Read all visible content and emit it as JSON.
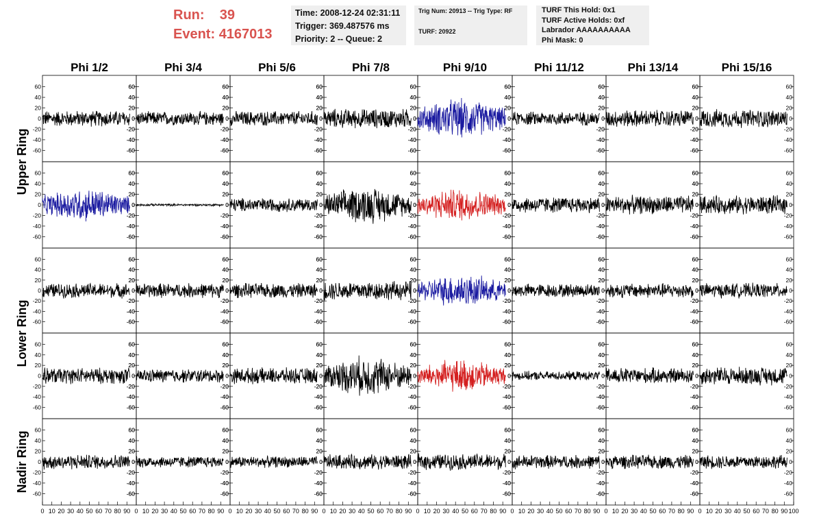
{
  "header": {
    "run_label": "Run:",
    "run_value": "39",
    "event_label": "Event:",
    "event_value": "4167013",
    "time_text": "Time: 2008-12-24 02:31:11",
    "trigger_text": "Trigger: 369.487576 ms",
    "priority_text": "Priority: 2 -- Queue: 2",
    "trig_num_text": "Trig Num: 20913 -- Trig Type: RF",
    "turf_text": "TURF: 20922",
    "turf_hold_text": "TURF This Hold: 0x1",
    "turf_active_text": "TURF Active Holds: 0xf",
    "labrador_text": "Labrador AAAAAAAAAA",
    "phi_mask_text": "Phi Mask: 0"
  },
  "chart_data": {
    "type": "line",
    "columns": [
      "Phi 1/2",
      "Phi 3/4",
      "Phi 5/6",
      "Phi 7/8",
      "Phi 9/10",
      "Phi 11/12",
      "Phi 13/14",
      "Phi 15/16"
    ],
    "rows": [
      "Upper Ring",
      "Upper Ring",
      "Lower Ring",
      "Lower Ring",
      "Nadir Ring"
    ],
    "row_labels": [
      "Upper Ring",
      "Lower Ring",
      "Nadir Ring"
    ],
    "xlim": [
      0,
      100
    ],
    "ylim": [
      -75,
      75
    ],
    "yticks": [
      -60,
      -40,
      -20,
      0,
      20,
      40,
      60
    ],
    "xticks": [
      0,
      10,
      20,
      30,
      40,
      50,
      60,
      70,
      80,
      90,
      100
    ],
    "x_tick_labels": [
      "0",
      "10",
      "20",
      "30",
      "40",
      "50",
      "60",
      "70",
      "80",
      "90",
      "100"
    ],
    "y_tick_labels": [
      "-60",
      "-40",
      "-20",
      "0",
      "20",
      "40",
      "60"
    ],
    "samples_per_trace": 260,
    "colors": {
      "default": "#000000",
      "blue": "#1a1aa0",
      "red": "#d42020"
    },
    "amplitudes": [
      [
        14,
        12,
        13,
        17,
        24,
        12,
        15,
        16
      ],
      [
        20,
        2,
        12,
        22,
        20,
        14,
        16,
        16
      ],
      [
        13,
        13,
        13,
        17,
        20,
        12,
        13,
        13
      ],
      [
        14,
        12,
        14,
        24,
        20,
        8,
        14,
        16
      ],
      [
        13,
        10,
        10,
        13,
        14,
        12,
        12,
        12
      ]
    ],
    "highlight": {
      "0-4": "blue",
      "1-0": "blue",
      "1-4": "red",
      "2-4": "blue",
      "3-4": "red"
    }
  }
}
